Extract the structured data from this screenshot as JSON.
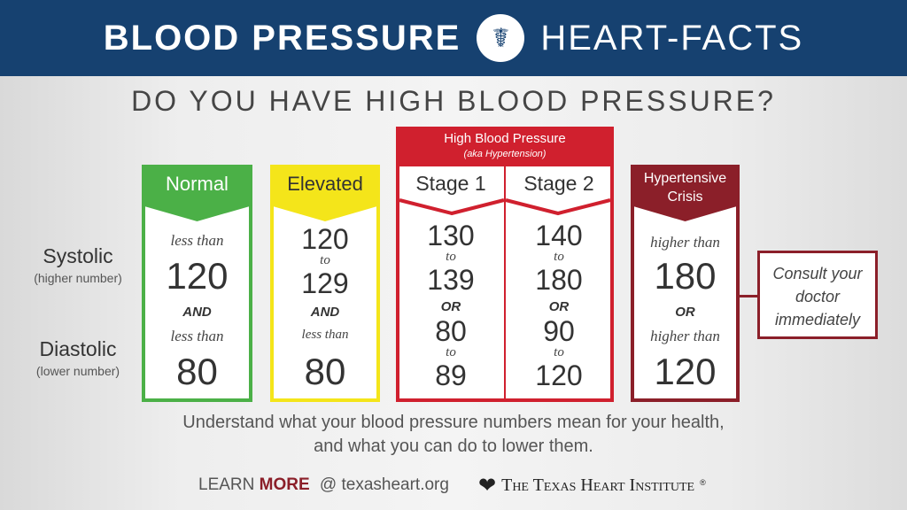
{
  "header": {
    "title_bold": "BLOOD PRESSURE",
    "title_light": "HEART-FACTS",
    "icon": "stethoscope-gauge-icon"
  },
  "question": "DO YOU HAVE HIGH BLOOD PRESSURE?",
  "row_labels": {
    "systolic": "Systolic",
    "systolic_sub": "(higher number)",
    "diastolic": "Diastolic",
    "diastolic_sub": "(lower number)"
  },
  "categories": {
    "normal": {
      "label": "Normal",
      "color": "#4bb047",
      "l1": "less than",
      "v1": "120",
      "join": "AND",
      "l2": "less than",
      "v2": "80"
    },
    "elevated": {
      "label": "Elevated",
      "color": "#f4e51a",
      "v1a": "120",
      "to": "to",
      "v1b": "129",
      "join": "AND",
      "l2": "less than",
      "v2": "80"
    },
    "high": {
      "label": "High Blood Pressure",
      "sub": "(aka Hypertension)",
      "color": "#d0202e",
      "stage1": {
        "label": "Stage 1",
        "a": "130",
        "to1": "to",
        "b": "139",
        "join": "OR",
        "c": "80",
        "to2": "to",
        "d": "89"
      },
      "stage2": {
        "label": "Stage 2",
        "a": "140",
        "to1": "to",
        "b": "180",
        "join": "OR",
        "c": "90",
        "to2": "to",
        "d": "120"
      }
    },
    "crisis": {
      "label1": "Hypertensive",
      "label2": "Crisis",
      "color": "#8b1f29",
      "l1": "higher than",
      "v1": "180",
      "join": "OR",
      "l2": "higher than",
      "v2": "120"
    }
  },
  "consult": {
    "l1": "Consult your",
    "l2": "doctor",
    "l3": "immediately"
  },
  "footer": {
    "line1": "Understand what your blood pressure numbers mean for your health,",
    "line2": "and what you can do to lower them.",
    "learn": "LEARN",
    "more": "MORE",
    "site": "@ texasheart.org",
    "org": "The Texas Heart Institute",
    "org_mark": "®"
  }
}
